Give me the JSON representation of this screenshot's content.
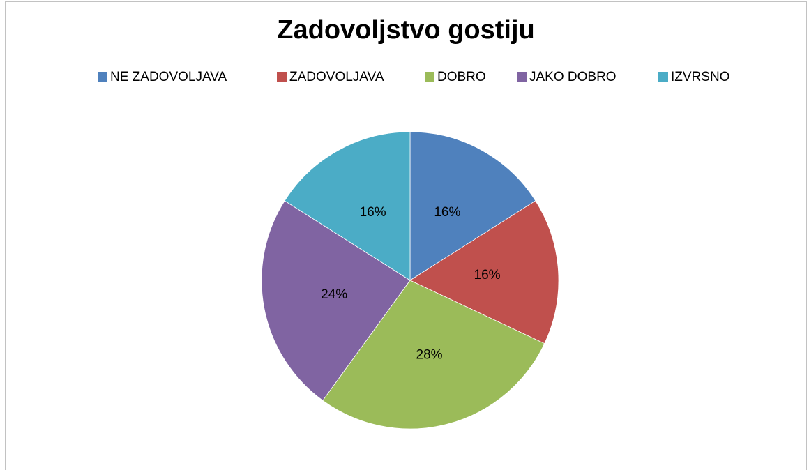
{
  "chart_data": {
    "type": "pie",
    "title": "Zadovoljstvo gostiju",
    "categories": [
      "NE ZADOVOLJAVA",
      "ZADOVOLJAVA",
      "DOBRO",
      "JAKO DOBRO",
      "IZVRSNO"
    ],
    "values": [
      16,
      16,
      28,
      24,
      16
    ],
    "value_labels": [
      "16%",
      "16%",
      "28%",
      "24%",
      "16%"
    ],
    "colors": [
      "#4f81bd",
      "#c0504d",
      "#9bbb59",
      "#8064a2",
      "#4bacc6"
    ],
    "legend": "top"
  }
}
